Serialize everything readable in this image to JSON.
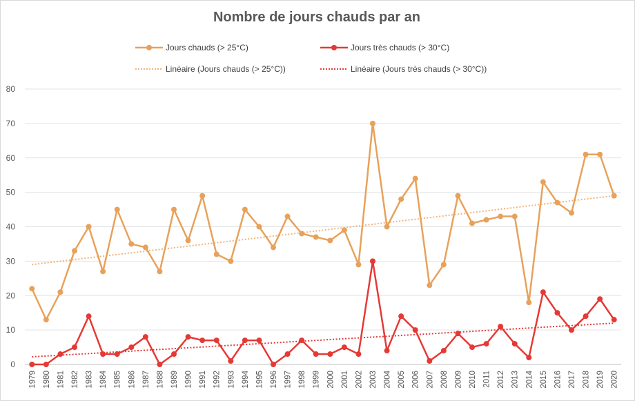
{
  "chart_data": {
    "type": "line",
    "title": "Nombre de jours chauds par an",
    "xlabel": "",
    "ylabel": "",
    "ylim": [
      0,
      80
    ],
    "yticks": [
      0,
      10,
      20,
      30,
      40,
      50,
      60,
      70,
      80
    ],
    "grid": true,
    "legend_position": "top",
    "categories": [
      "1979",
      "1980",
      "1981",
      "1982",
      "1983",
      "1984",
      "1985",
      "1986",
      "1987",
      "1988",
      "1989",
      "1990",
      "1991",
      "1992",
      "1993",
      "1994",
      "1995",
      "1996",
      "1997",
      "1998",
      "1999",
      "2000",
      "2001",
      "2002",
      "2003",
      "2004",
      "2005",
      "2006",
      "2007",
      "2008",
      "2009",
      "2010",
      "2011",
      "2012",
      "2013",
      "2014",
      "2015",
      "2016",
      "2017",
      "2018",
      "2019",
      "2020"
    ],
    "series": [
      {
        "name": "Jours chauds (> 25°C)",
        "color": "#E8A15A",
        "values": [
          22,
          13,
          21,
          33,
          40,
          27,
          45,
          35,
          34,
          27,
          45,
          36,
          49,
          32,
          30,
          45,
          40,
          34,
          43,
          38,
          37,
          36,
          39,
          29,
          70,
          40,
          48,
          54,
          23,
          29,
          49,
          41,
          42,
          43,
          43,
          18,
          53,
          47,
          44,
          61,
          61,
          49
        ]
      },
      {
        "name": "Jours très chauds (> 30°C)",
        "color": "#E53935",
        "values": [
          0,
          0,
          3,
          5,
          14,
          3,
          3,
          5,
          8,
          0,
          3,
          8,
          7,
          7,
          1,
          7,
          7,
          0,
          3,
          7,
          3,
          3,
          5,
          3,
          30,
          4,
          14,
          10,
          1,
          4,
          9,
          5,
          6,
          11,
          6,
          2,
          21,
          15,
          10,
          14,
          19,
          13
        ]
      }
    ],
    "trendlines": [
      {
        "name": "Linéaire (Jours chauds (> 25°C))",
        "color": "#F2B27A",
        "start": 29,
        "end": 49
      },
      {
        "name": "Linéaire (Jours très chauds (> 30°C))",
        "color": "#E53935",
        "start": 2.2,
        "end": 12
      }
    ]
  }
}
